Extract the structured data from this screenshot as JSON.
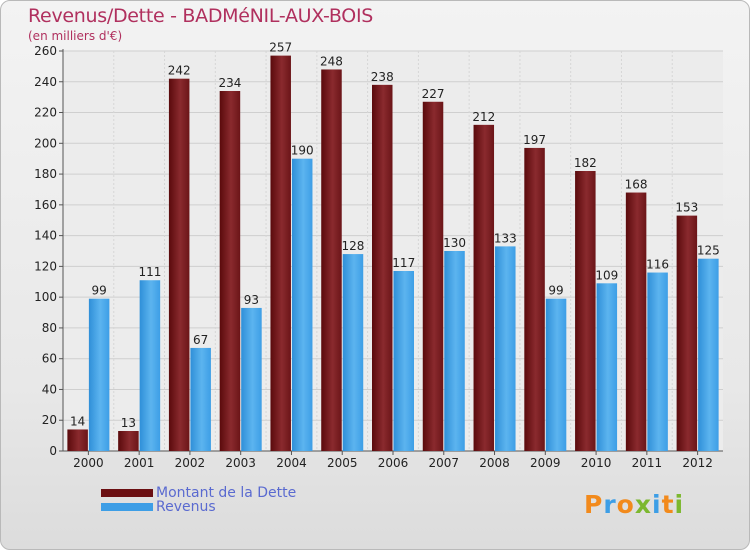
{
  "title": "Revenus/Dette - BADMéNIL-AUX-BOIS",
  "subtitle": "(en milliers d'€)",
  "colors": {
    "dette": "#6b0f12",
    "revenus": "#3d9ee6",
    "title": "#b0305e"
  },
  "legend": {
    "dette_label": "Montant de la Dette",
    "revenus_label": "Revenus"
  },
  "logo": {
    "text": "Proxiti"
  },
  "chart_data": {
    "type": "bar",
    "title": "Revenus/Dette - BADMéNIL-AUX-BOIS",
    "ylabel": "(en milliers d'€)",
    "categories": [
      "2000",
      "2001",
      "2002",
      "2003",
      "2004",
      "2005",
      "2006",
      "2007",
      "2008",
      "2009",
      "2010",
      "2011",
      "2012"
    ],
    "series": [
      {
        "name": "Montant de la Dette",
        "values": [
          14,
          13,
          242,
          234,
          257,
          248,
          238,
          227,
          212,
          197,
          182,
          168,
          153
        ]
      },
      {
        "name": "Revenus",
        "values": [
          99,
          111,
          67,
          93,
          190,
          128,
          117,
          130,
          133,
          99,
          109,
          116,
          125
        ]
      }
    ],
    "ylim": [
      0,
      260
    ],
    "yticks": [
      0,
      20,
      40,
      60,
      80,
      100,
      120,
      140,
      160,
      180,
      200,
      220,
      240,
      260
    ],
    "grid": true,
    "legend_position": "bottom-left"
  }
}
